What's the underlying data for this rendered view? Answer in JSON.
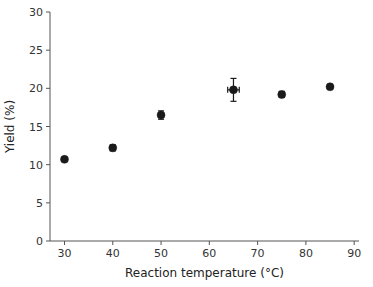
{
  "chart_data": {
    "type": "scatter",
    "x": [
      30,
      40,
      50,
      65,
      75,
      85
    ],
    "values": [
      10.7,
      12.2,
      16.5,
      19.8,
      19.2,
      20.2
    ],
    "yerr": [
      0.25,
      0.4,
      0.55,
      1.5,
      0.4,
      0.3
    ],
    "xerr": [
      0.0,
      0.0,
      0.0,
      1.2,
      0.0,
      0.0
    ],
    "color": "#1a1a1a",
    "xlabel": "Reaction temperature (°C)",
    "ylabel": "Yield (%)",
    "xlim": [
      27,
      91
    ],
    "ylim": [
      0,
      30
    ],
    "xticks": [
      30,
      40,
      50,
      60,
      70,
      80,
      90
    ],
    "yticks": [
      0,
      5,
      10,
      15,
      20,
      25,
      30
    ]
  }
}
